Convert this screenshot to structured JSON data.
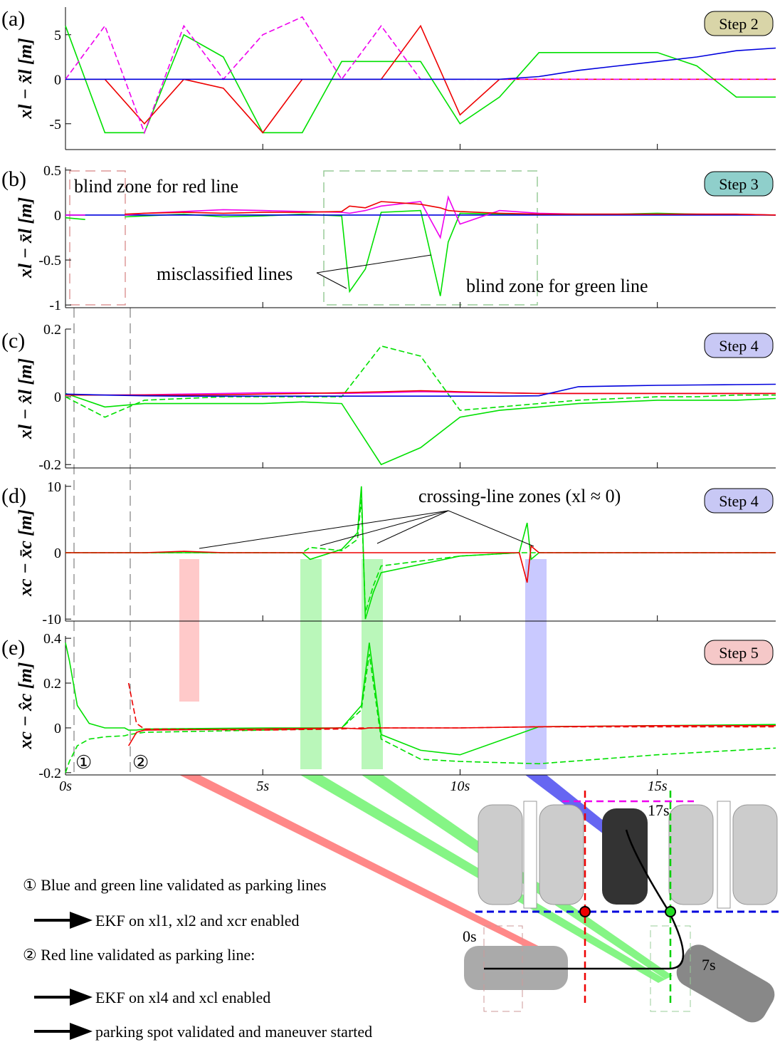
{
  "chart_data": [
    {
      "type": "line",
      "panel_label": "(a)",
      "step_label": "Step 2",
      "step_color": "#d9d5a8",
      "ylabel": "xl − x̃l [m]",
      "x": [
        0,
        1,
        2,
        3,
        4,
        5,
        6,
        7,
        8,
        9,
        10,
        11,
        12,
        13,
        14,
        15,
        16,
        17,
        18
      ],
      "xlim": [
        0,
        18
      ],
      "ylim": [
        -7.9,
        8.1
      ],
      "yticks": [
        5,
        0,
        -5
      ],
      "xticks": [
        5,
        10,
        15
      ],
      "xtick_labels": false,
      "series": [
        {
          "color": "#00e000",
          "dash": false,
          "values": [
            6,
            -6,
            -6,
            5,
            2.5,
            -6,
            -6,
            2,
            2,
            2,
            -5,
            -2,
            3,
            3,
            3,
            3,
            1.5,
            -2,
            -2
          ]
        },
        {
          "color": "#ee0000",
          "dash": false,
          "values": [
            0,
            0,
            -5,
            0,
            -1,
            -6,
            0,
            0,
            0,
            6,
            -4,
            0,
            0,
            0,
            0,
            0,
            0,
            0,
            0
          ]
        },
        {
          "color": "#ee00ee",
          "dash": true,
          "values": [
            0,
            6,
            -6,
            6,
            0,
            5,
            7,
            0,
            6,
            0,
            0,
            0,
            0,
            0,
            0,
            0,
            0,
            0,
            0
          ]
        },
        {
          "color": "#0000dd",
          "dash": false,
          "values": [
            0,
            0,
            0,
            0,
            0,
            0,
            0,
            0,
            0,
            0,
            0,
            0,
            0.3,
            1,
            1.5,
            2,
            2.5,
            3.2,
            3.5
          ]
        }
      ],
      "annotations": []
    },
    {
      "type": "line",
      "panel_label": "(b)",
      "step_label": "Step 3",
      "step_color": "#8fcfcb",
      "ylabel": "xl − x̄l [m]",
      "x": [
        0,
        0.5,
        1,
        1.5,
        2,
        3,
        4,
        5,
        6,
        7,
        7.2,
        7.6,
        8,
        9,
        9.5,
        9.7,
        10,
        11,
        12,
        13,
        14,
        15,
        16,
        17,
        18
      ],
      "xlim": [
        0,
        18
      ],
      "ylim": [
        -1.03,
        0.53
      ],
      "yticks": [
        0.5,
        0,
        -0.5,
        -1
      ],
      "xticks": [
        5,
        10,
        15
      ],
      "xtick_labels": false,
      "series": [
        {
          "color": "#00e000",
          "dash": false,
          "values": [
            -0.03,
            -0.05,
            null,
            -0.02,
            -0.01,
            0.01,
            -0.02,
            -0.01,
            0.01,
            -0.01,
            -0.85,
            -0.6,
            0.03,
            0.05,
            -0.9,
            -0.3,
            0.02,
            0.01,
            0.01,
            0.01,
            0.01,
            0.02,
            0.01,
            0.005,
            0
          ]
        },
        {
          "color": "#0000dd",
          "dash": false,
          "values": [
            0,
            0,
            0,
            0,
            0,
            0,
            0,
            0,
            0,
            0,
            0,
            0,
            0,
            0,
            0,
            0,
            0,
            0,
            0,
            0,
            0,
            0,
            0,
            0,
            0
          ]
        },
        {
          "color": "#ee00ee",
          "dash": false,
          "values": [
            0,
            0,
            null,
            0,
            0.02,
            0.04,
            0.06,
            0.05,
            0.04,
            0.03,
            0.02,
            0.05,
            0.1,
            0.15,
            -0.25,
            0.2,
            -0.1,
            0.05,
            0.02,
            0.01,
            0.01,
            0.01,
            0.01,
            0.01,
            0
          ]
        },
        {
          "color": "#ee0000",
          "dash": false,
          "values": [
            null,
            null,
            null,
            0.01,
            0.02,
            0.03,
            0.02,
            0.03,
            0.03,
            0.04,
            0.1,
            0.08,
            0.15,
            0.12,
            0.08,
            0.05,
            0.04,
            0.02,
            0.01,
            0.01,
            0.01,
            0.01,
            0.01,
            0.01,
            0
          ]
        }
      ],
      "annotations": [
        "blind zone for red line",
        "misclassified lines",
        "blind zone for green line"
      ]
    },
    {
      "type": "line",
      "panel_label": "(c)",
      "step_label": "Step 4",
      "step_color": "#c8c8f5",
      "ylabel": "xl − x̂l [m]",
      "x": [
        0,
        1,
        2,
        3,
        4,
        5,
        6,
        7,
        8,
        9,
        10,
        11,
        12,
        13,
        14,
        15,
        16,
        17,
        18
      ],
      "xlim": [
        0,
        18
      ],
      "ylim": [
        -0.21,
        0.2
      ],
      "yticks": [
        0.2,
        0,
        -0.2
      ],
      "xticks": [
        5,
        10,
        15
      ],
      "xtick_labels": false,
      "series": [
        {
          "color": "#00e000",
          "dash": false,
          "values": [
            0.01,
            -0.03,
            -0.02,
            -0.02,
            -0.02,
            -0.02,
            -0.015,
            -0.02,
            -0.2,
            -0.15,
            -0.06,
            -0.04,
            -0.03,
            -0.02,
            -0.015,
            -0.01,
            -0.01,
            -0.01,
            -0.005
          ]
        },
        {
          "color": "#00e000",
          "dash": true,
          "values": [
            0,
            -0.06,
            -0.01,
            -0.005,
            0,
            0,
            0,
            0,
            0.15,
            0.12,
            -0.04,
            -0.03,
            -0.02,
            -0.01,
            -0.005,
            0,
            0,
            0.005,
            0.005
          ]
        },
        {
          "color": "#ee00ee",
          "dash": false,
          "values": [
            0.005,
            0.005,
            0.006,
            0.008,
            0.01,
            0.012,
            0.012,
            0.01,
            0.012,
            0.015,
            0.013,
            0.012,
            0.01,
            0.01,
            0.01,
            0.01,
            0.01,
            0.01,
            0.01
          ]
        },
        {
          "color": "#ee0000",
          "dash": false,
          "values": [
            0.005,
            0.005,
            0.005,
            0.005,
            0.006,
            0.008,
            0.01,
            0.012,
            0.015,
            0.018,
            0.015,
            0.012,
            0.01,
            0.01,
            0.01,
            0.01,
            0.01,
            0.01,
            0.01
          ]
        },
        {
          "color": "#0000dd",
          "dash": false,
          "values": [
            0.008,
            0.005,
            0.003,
            0.002,
            0.002,
            0.002,
            0.002,
            0.002,
            0.002,
            0.002,
            0.002,
            0.002,
            0.003,
            0.03,
            0.032,
            0.034,
            0.035,
            0.036,
            0.037
          ]
        }
      ],
      "annotations": []
    },
    {
      "type": "line",
      "panel_label": "(d)",
      "step_label": "Step 4",
      "step_color": "#c8c8f5",
      "ylabel": "xc − x̄c [m]",
      "x": [
        0,
        2,
        3,
        4,
        6,
        6.2,
        7,
        7.4,
        7.5,
        7.6,
        7.8,
        8,
        10,
        11.5,
        11.7,
        11.8,
        12,
        14,
        18
      ],
      "xlim": [
        0,
        18
      ],
      "ylim": [
        -10.3,
        10.3
      ],
      "yticks": [
        10,
        0,
        -10
      ],
      "xticks": [
        5,
        10,
        15
      ],
      "xtick_labels": false,
      "series": [
        {
          "color": "#00e000",
          "dash": false,
          "values": [
            0,
            0,
            0,
            0,
            0,
            -1,
            0.5,
            3,
            10,
            -10,
            -6,
            -3,
            -0.5,
            0,
            4.5,
            -1,
            0,
            0,
            0
          ]
        },
        {
          "color": "#00e000",
          "dash": true,
          "values": [
            0,
            0,
            0,
            0,
            0,
            0.8,
            0.3,
            2,
            8,
            -9,
            -5,
            -2,
            -0.5,
            0,
            0,
            0,
            0,
            0,
            0
          ]
        },
        {
          "color": "#ee0000",
          "dash": false,
          "values": [
            0,
            0,
            0.2,
            0,
            0,
            0,
            0,
            0,
            0,
            0,
            0,
            0,
            0,
            0,
            -4.5,
            1,
            0,
            0,
            0
          ]
        }
      ],
      "annotations": [
        "crossing-line zones (xl ≈ 0)"
      ]
    },
    {
      "type": "line",
      "panel_label": "(e)",
      "step_label": "Step 5",
      "step_color": "#f5c8c8",
      "ylabel": "xc − x̂c [m]",
      "x": [
        0,
        0.1,
        0.3,
        0.6,
        1,
        1.5,
        1.6,
        1.8,
        2,
        5,
        7,
        7.5,
        7.7,
        8,
        9,
        10,
        12,
        15,
        18
      ],
      "xlim": [
        0,
        18
      ],
      "ylim": [
        -0.21,
        0.41
      ],
      "yticks": [
        0.4,
        0.2,
        0,
        -0.2
      ],
      "xticks": [
        {
          "value": 0,
          "label": "0s"
        },
        {
          "value": 5,
          "label": "5s"
        },
        {
          "value": 10,
          "label": "10s"
        },
        {
          "value": 15,
          "label": "15s"
        }
      ],
      "xtick_labels": true,
      "series": [
        {
          "color": "#00e000",
          "dash": false,
          "values": [
            0.38,
            0.3,
            0.1,
            0.02,
            0,
            0,
            -0.01,
            -0.01,
            -0.005,
            0,
            0,
            0.1,
            0.38,
            -0.03,
            -0.1,
            -0.12,
            0.005,
            0.01,
            0.015
          ]
        },
        {
          "color": "#00e000",
          "dash": true,
          "values": [
            -0.2,
            -0.15,
            -0.08,
            -0.05,
            -0.04,
            -0.035,
            -0.03,
            -0.025,
            -0.02,
            -0.01,
            0,
            0.08,
            0.33,
            -0.05,
            -0.14,
            -0.15,
            -0.16,
            -0.12,
            -0.09
          ]
        },
        {
          "color": "#ee0000",
          "dash": true,
          "values": [
            null,
            null,
            null,
            null,
            null,
            null,
            0.2,
            0.02,
            -0.005,
            -0.01,
            -0.005,
            0,
            0,
            0,
            0,
            0,
            0.005,
            0.005,
            0.005
          ]
        },
        {
          "color": "#ee0000",
          "dash": false,
          "values": [
            null,
            null,
            null,
            null,
            null,
            null,
            -0.08,
            -0.02,
            -0.01,
            -0.005,
            0,
            -0.005,
            0,
            0,
            0,
            0,
            0.005,
            0.01,
            0.01
          ]
        }
      ],
      "annotations": [
        "①",
        "②"
      ]
    }
  ],
  "diagram": {
    "times": [
      "17s",
      "0s",
      "7s"
    ],
    "notes": [
      "① Blue and green line validated as parking lines",
      "EKF on xl1, xl2 and xcr enabled",
      "② Red line validated as parking line:",
      "EKF on xl4 and xcl enabled",
      "parking spot validated and maneuver started"
    ]
  }
}
